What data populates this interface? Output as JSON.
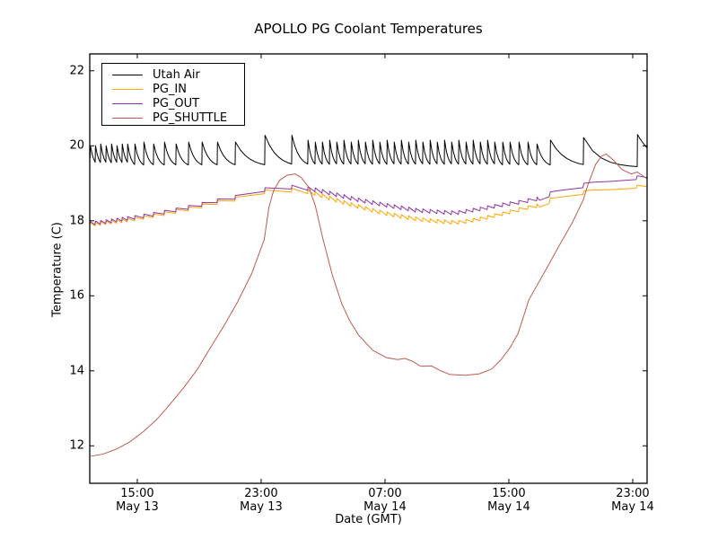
{
  "chart_data": {
    "type": "line",
    "title": "APOLLO PG Coolant Temperatures",
    "xlabel": "Date (GMT)",
    "ylabel": "Temperature (C)",
    "x_encoding": "hours since May 13 00:00 GMT",
    "xlim": [
      11.93,
      47.93
    ],
    "ylim": [
      11.0,
      22.45
    ],
    "yticks": [
      12,
      14,
      16,
      18,
      20,
      22
    ],
    "xticks": [
      {
        "t": 15,
        "time": "15:00",
        "date": "May 13"
      },
      {
        "t": 23,
        "time": "23:00",
        "date": "May 13"
      },
      {
        "t": 31,
        "time": "07:00",
        "date": "May 14"
      },
      {
        "t": 39,
        "time": "15:00",
        "date": "May 14"
      },
      {
        "t": 47,
        "time": "23:00",
        "date": "May 14"
      }
    ],
    "grid": false,
    "legend_position": "upper left",
    "series": [
      {
        "name": "Utah Air",
        "color": "#000000",
        "style": "thermostat-sawtooth",
        "start_value": 19.7,
        "decay_floor": 19.42,
        "spikes": [
          [
            11.95,
            20.0
          ],
          [
            12.28,
            20.0
          ],
          [
            12.62,
            20.05
          ],
          [
            12.97,
            20.0
          ],
          [
            13.32,
            20.05
          ],
          [
            13.67,
            20.0
          ],
          [
            14.01,
            20.05
          ],
          [
            14.36,
            20.05
          ],
          [
            14.83,
            20.05
          ],
          [
            15.41,
            20.1
          ],
          [
            16.04,
            20.05
          ],
          [
            16.74,
            20.1
          ],
          [
            17.49,
            20.05
          ],
          [
            18.3,
            20.1
          ],
          [
            19.17,
            20.1
          ],
          [
            20.16,
            20.1
          ],
          [
            21.32,
            20.1
          ],
          [
            23.23,
            20.28
          ],
          [
            24.97,
            20.28
          ],
          [
            26.01,
            20.15
          ],
          [
            26.48,
            20.1
          ],
          [
            26.94,
            20.1
          ],
          [
            27.41,
            20.15
          ],
          [
            27.87,
            20.1
          ],
          [
            28.33,
            20.15
          ],
          [
            28.8,
            20.1
          ],
          [
            29.26,
            20.15
          ],
          [
            29.72,
            20.1
          ],
          [
            30.19,
            20.15
          ],
          [
            30.65,
            20.1
          ],
          [
            31.12,
            20.15
          ],
          [
            31.58,
            20.1
          ],
          [
            32.04,
            20.15
          ],
          [
            32.51,
            20.1
          ],
          [
            32.97,
            20.15
          ],
          [
            33.43,
            20.1
          ],
          [
            33.9,
            20.15
          ],
          [
            34.36,
            20.1
          ],
          [
            34.83,
            20.15
          ],
          [
            35.29,
            20.1
          ],
          [
            35.75,
            20.15
          ],
          [
            36.22,
            20.1
          ],
          [
            36.68,
            20.15
          ],
          [
            37.14,
            20.1
          ],
          [
            37.61,
            20.15
          ],
          [
            38.07,
            20.1
          ],
          [
            38.59,
            20.1
          ],
          [
            39.06,
            20.1
          ],
          [
            39.64,
            20.1
          ],
          [
            40.22,
            20.1
          ],
          [
            40.8,
            20.05
          ],
          [
            41.67,
            20.15
          ],
          [
            43.81,
            20.22
          ],
          [
            47.29,
            20.3
          ]
        ]
      },
      {
        "name": "PG_IN",
        "color": "#FFA500",
        "style": "line",
        "ripple_amp": 0.05,
        "points": [
          [
            12,
            17.9
          ],
          [
            13,
            17.95
          ],
          [
            14,
            18.0
          ],
          [
            15,
            18.06
          ],
          [
            16,
            18.13
          ],
          [
            17,
            18.21
          ],
          [
            18,
            18.29
          ],
          [
            19,
            18.38
          ],
          [
            20,
            18.47
          ],
          [
            21,
            18.55
          ],
          [
            22,
            18.64
          ],
          [
            23,
            18.71
          ],
          [
            23.3,
            18.79
          ],
          [
            24.3,
            18.76
          ],
          [
            25.0,
            18.82
          ],
          [
            25.6,
            18.8
          ],
          [
            26.1,
            18.77
          ],
          [
            27,
            18.66
          ],
          [
            28,
            18.53
          ],
          [
            29,
            18.41
          ],
          [
            30,
            18.3
          ],
          [
            31,
            18.2
          ],
          [
            32,
            18.12
          ],
          [
            33,
            18.05
          ],
          [
            34,
            18.0
          ],
          [
            35,
            17.97
          ],
          [
            35.6,
            17.95
          ],
          [
            36.5,
            18.0
          ],
          [
            37.5,
            18.08
          ],
          [
            38.5,
            18.18
          ],
          [
            39.5,
            18.28
          ],
          [
            40.5,
            18.38
          ],
          [
            41.6,
            18.46
          ],
          [
            41.68,
            18.6
          ],
          [
            42.5,
            18.64
          ],
          [
            43.3,
            18.68
          ],
          [
            43.78,
            18.7
          ],
          [
            43.86,
            18.8
          ],
          [
            44.5,
            18.82
          ],
          [
            45.5,
            18.83
          ],
          [
            46.5,
            18.85
          ],
          [
            47.22,
            18.87
          ],
          [
            47.3,
            18.95
          ],
          [
            47.93,
            18.91
          ]
        ]
      },
      {
        "name": "PG_OUT",
        "color": "#8A35A0",
        "style": "line",
        "ripple_amp": 0.05,
        "points": [
          [
            12,
            17.93
          ],
          [
            13,
            17.98
          ],
          [
            14,
            18.04
          ],
          [
            15,
            18.1
          ],
          [
            16,
            18.17
          ],
          [
            17,
            18.25
          ],
          [
            18,
            18.33
          ],
          [
            19,
            18.42
          ],
          [
            20,
            18.52
          ],
          [
            21,
            18.6
          ],
          [
            22,
            18.68
          ],
          [
            23,
            18.77
          ],
          [
            23.3,
            18.85
          ],
          [
            24.3,
            18.83
          ],
          [
            25.0,
            18.9
          ],
          [
            25.6,
            18.88
          ],
          [
            26.1,
            18.86
          ],
          [
            27,
            18.78
          ],
          [
            28,
            18.68
          ],
          [
            29,
            18.58
          ],
          [
            30,
            18.5
          ],
          [
            31,
            18.42
          ],
          [
            32,
            18.35
          ],
          [
            33,
            18.28
          ],
          [
            34,
            18.25
          ],
          [
            35,
            18.22
          ],
          [
            35.6,
            18.21
          ],
          [
            36.5,
            18.27
          ],
          [
            37.5,
            18.34
          ],
          [
            38.5,
            18.42
          ],
          [
            39.5,
            18.48
          ],
          [
            40.5,
            18.56
          ],
          [
            41.6,
            18.64
          ],
          [
            41.68,
            18.77
          ],
          [
            42.5,
            18.82
          ],
          [
            43.3,
            18.86
          ],
          [
            43.78,
            18.88
          ],
          [
            43.86,
            19.0
          ],
          [
            44.5,
            19.03
          ],
          [
            45.5,
            19.05
          ],
          [
            46.5,
            19.08
          ],
          [
            47.22,
            19.1
          ],
          [
            47.3,
            19.2
          ],
          [
            47.93,
            19.15
          ]
        ]
      },
      {
        "name": "PG_SHUTTLE",
        "color": "#C05A55",
        "style": "line",
        "ripple_amp": 0,
        "points": [
          [
            12,
            11.72
          ],
          [
            12.8,
            11.78
          ],
          [
            13.7,
            11.92
          ],
          [
            14.5,
            12.1
          ],
          [
            15.4,
            12.38
          ],
          [
            16.3,
            12.72
          ],
          [
            17.1,
            13.1
          ],
          [
            18,
            13.55
          ],
          [
            18.9,
            14.05
          ],
          [
            19.7,
            14.6
          ],
          [
            20.6,
            15.2
          ],
          [
            21.5,
            15.85
          ],
          [
            22.4,
            16.6
          ],
          [
            23.2,
            17.5
          ],
          [
            23.5,
            18.35
          ],
          [
            23.8,
            18.8
          ],
          [
            24.2,
            19.08
          ],
          [
            24.7,
            19.22
          ],
          [
            25.2,
            19.25
          ],
          [
            25.6,
            19.15
          ],
          [
            26.1,
            18.88
          ],
          [
            26.5,
            18.4
          ],
          [
            27,
            17.5
          ],
          [
            27.6,
            16.55
          ],
          [
            28.2,
            15.8
          ],
          [
            28.7,
            15.35
          ],
          [
            29.3,
            14.95
          ],
          [
            30.2,
            14.55
          ],
          [
            31.1,
            14.35
          ],
          [
            31.8,
            14.3
          ],
          [
            32.3,
            14.33
          ],
          [
            32.8,
            14.25
          ],
          [
            33.3,
            14.12
          ],
          [
            34,
            14.13
          ],
          [
            34.6,
            14.0
          ],
          [
            35.2,
            13.9
          ],
          [
            36.2,
            13.88
          ],
          [
            37.1,
            13.92
          ],
          [
            37.9,
            14.05
          ],
          [
            38.5,
            14.3
          ],
          [
            39.1,
            14.63
          ],
          [
            39.6,
            15.0
          ],
          [
            40.3,
            15.9
          ],
          [
            41.4,
            16.7
          ],
          [
            42.2,
            17.3
          ],
          [
            43.1,
            17.95
          ],
          [
            43.8,
            18.55
          ],
          [
            44.1,
            18.95
          ],
          [
            44.6,
            19.5
          ],
          [
            45.0,
            19.73
          ],
          [
            45.3,
            19.78
          ],
          [
            45.8,
            19.6
          ],
          [
            46.3,
            19.37
          ],
          [
            46.9,
            19.25
          ],
          [
            47.3,
            19.3
          ],
          [
            47.93,
            19.12
          ]
        ]
      }
    ]
  }
}
